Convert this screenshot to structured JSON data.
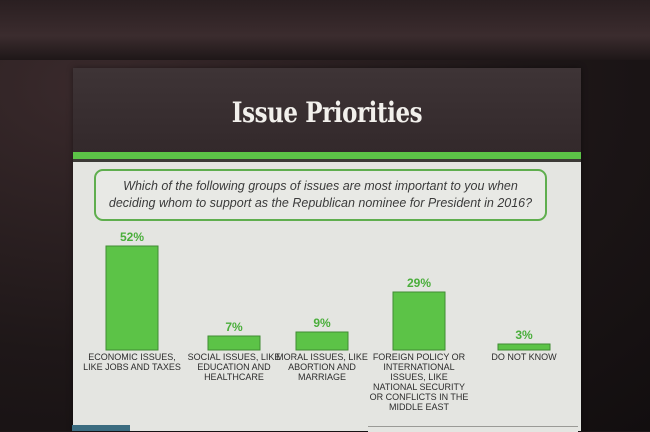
{
  "slide": {
    "title": "Issue Priorities",
    "question": "Which of the following groups of issues are most important to you when deciding whom to support as the Republican nominee for President in 2016?"
  },
  "colors": {
    "bar": "#5cc347",
    "bar_outline": "#3f8c33",
    "value_label": "#4aae3b",
    "header": "#3a3032",
    "category_text": "#2c2c2c"
  },
  "chart_data": {
    "type": "bar",
    "categories": [
      [
        "ECONOMIC ISSUES,",
        "LIKE JOBS AND TAXES"
      ],
      [
        "SOCIAL ISSUES, LIKE",
        "EDUCATION AND",
        "HEALTHCARE"
      ],
      [
        "MORAL ISSUES, LIKE",
        "ABORTION AND",
        "MARRIAGE"
      ],
      [
        "FOREIGN POLICY OR",
        "INTERNATIONAL",
        "ISSUES, LIKE",
        "NATIONAL SECURITY",
        "OR CONFLICTS IN THE",
        "MIDDLE EAST"
      ],
      [
        "DO NOT KNOW"
      ]
    ],
    "values": [
      52,
      7,
      9,
      29,
      3
    ],
    "data_labels": [
      "52%",
      "7%",
      "9%",
      "29%",
      "3%"
    ],
    "ylim": [
      0,
      52
    ],
    "grid": false,
    "legend": "none"
  }
}
